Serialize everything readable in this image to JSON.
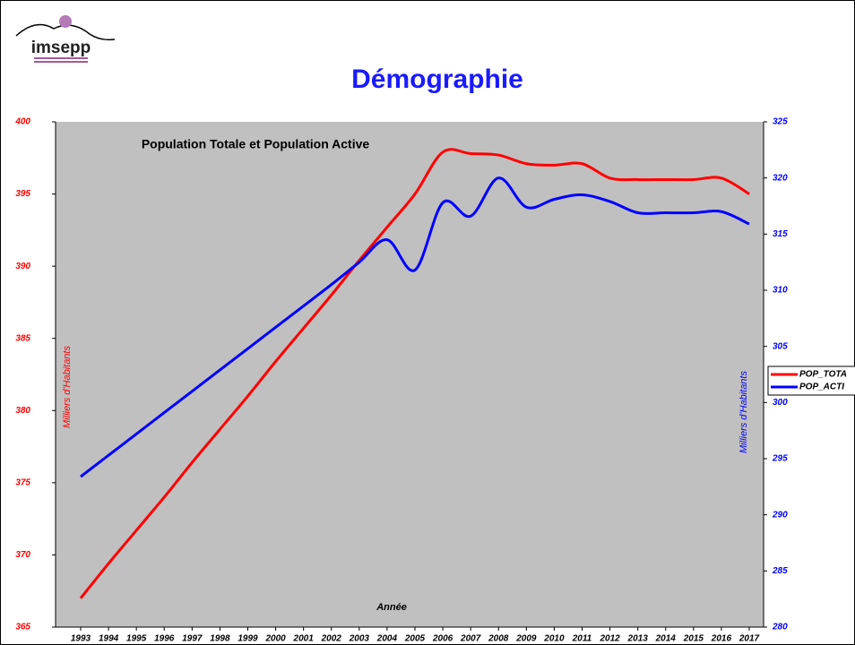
{
  "logo": "imsepp",
  "heading": "Démographie",
  "chart_data": {
    "type": "line",
    "title": "Population Totale et Population Active",
    "xlabel": "Année",
    "ylabel": "Milliers d'Habitants",
    "y2label": "Milliers d'Habitants",
    "categories": [
      "1993",
      "1994",
      "1995",
      "1996",
      "1997",
      "1998",
      "1999",
      "2000",
      "2001",
      "2002",
      "2003",
      "2004",
      "2005",
      "2006",
      "2007",
      "2008",
      "2009",
      "2010",
      "2011",
      "2012",
      "2013",
      "2014",
      "2015",
      "2016",
      "2017"
    ],
    "series": [
      {
        "name": "POP_TOTA",
        "color": "#ff0000",
        "values": [
          367,
          369.4,
          371.7,
          374,
          376.4,
          378.7,
          381,
          383.4,
          385.7,
          388,
          390.4,
          392.7,
          395,
          397.9,
          397.8,
          397.7,
          397.1,
          397,
          397.1,
          396.1,
          396,
          396,
          396,
          396.1,
          395
        ]
      },
      {
        "name": "POP_ACTI",
        "color": "#0000ff",
        "axis": "y2",
        "values": [
          293.4,
          295.3,
          297.2,
          299.1,
          301,
          302.9,
          304.8,
          306.7,
          308.6,
          310.5,
          312.5,
          314.5,
          311.8,
          317.8,
          316.6,
          320,
          317.4,
          318.1,
          318.5,
          317.9,
          316.9,
          316.9,
          316.9,
          317,
          315.9
        ]
      }
    ],
    "ylim": [
      365,
      400
    ],
    "yticks": [
      365,
      370,
      375,
      380,
      385,
      390,
      395,
      400
    ],
    "y2lim": [
      280,
      325
    ],
    "y2ticks": [
      280,
      285,
      290,
      295,
      300,
      305,
      310,
      315,
      320,
      325
    ],
    "legend": "right"
  }
}
